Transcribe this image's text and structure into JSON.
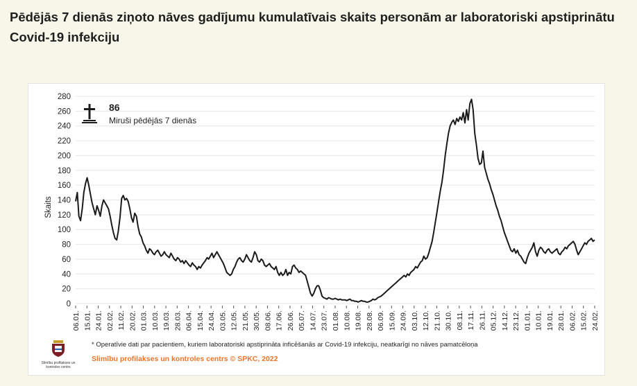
{
  "page": {
    "title": "Pēdējās 7 dienās ziņoto nāves gadījumu kumulatīvais skaits personām ar laboratoriski apstiprinātu Covid-19 infekciju"
  },
  "summary": {
    "value": "86",
    "label": "Miruši pēdējās 7 dienās",
    "icon": "cross-icon"
  },
  "footnote": "* Operatīvie dati par pacientiem, kuriem laboratoriski apstiprināta inficēšanās ar Covid-19 infekciju, neatkarīgi no nāves pamatcēloņa",
  "copyright": "Slimību profilakses un kontroles centrs © SPKC, 2022",
  "logo": {
    "icon": "spkc-logo-icon",
    "text": "Slimību profilakses un kontroles centrs"
  },
  "colors": {
    "background": "#f7f6e8",
    "line": "#1a1a1a",
    "grid": "#e6e6e6",
    "accent": "#e8762d"
  },
  "chart_data": {
    "type": "line",
    "title": "Pēdējās 7 dienās ziņoto nāves gadījumu kumulatīvais skaits personām ar laboratoriski apstiprinātu Covid-19 infekciju",
    "xlabel": "",
    "ylabel": "Skaits",
    "ylim": [
      0,
      280
    ],
    "y_ticks": [
      0,
      20,
      40,
      60,
      80,
      100,
      120,
      140,
      160,
      180,
      200,
      220,
      240,
      260,
      280
    ],
    "grid": true,
    "x_tick_labels": [
      "06.01.",
      "15.01.",
      "24.01.",
      "02.02.",
      "11.02.",
      "20.02.",
      "01.03.",
      "10.03.",
      "19.03.",
      "28.03.",
      "06.04.",
      "15.04.",
      "24.04.",
      "03.05.",
      "12.05.",
      "21.05.",
      "30.05.",
      "08.06.",
      "17.06.",
      "26.06.",
      "05.07.",
      "14.07.",
      "23.07.",
      "01.08.",
      "10.08.",
      "19.08.",
      "28.08.",
      "06.09.",
      "15.09.",
      "24.09.",
      "03.10.",
      "12.10.",
      "21.10.",
      "30.10.",
      "08.11.",
      "17.11.",
      "26.11.",
      "05.12.",
      "14.12.",
      "23.12.",
      "01.01.",
      "10.01.",
      "19.01.",
      "28.01.",
      "06.02.",
      "15.02.",
      "24.02."
    ],
    "series": [
      {
        "values": [
          138,
          150,
          118,
          112,
          128,
          150,
          162,
          170,
          160,
          148,
          136,
          128,
          120,
          132,
          126,
          118,
          132,
          140,
          136,
          132,
          128,
          118,
          106,
          96,
          88,
          86,
          98,
          116,
          142,
          146,
          140,
          142,
          138,
          128,
          116,
          110,
          122,
          118,
          104,
          94,
          90,
          82,
          78,
          72,
          68,
          74,
          72,
          68,
          66,
          70,
          72,
          68,
          64,
          66,
          70,
          66,
          64,
          62,
          68,
          64,
          60,
          58,
          62,
          60,
          56,
          58,
          54,
          58,
          55,
          52,
          50,
          55,
          52,
          50,
          46,
          50,
          48,
          52,
          55,
          58,
          62,
          60,
          64,
          68,
          62,
          66,
          70,
          66,
          62,
          58,
          54,
          48,
          42,
          40,
          38,
          40,
          46,
          50,
          56,
          60,
          62,
          58,
          56,
          60,
          66,
          62,
          58,
          56,
          62,
          70,
          66,
          58,
          56,
          60,
          58,
          52,
          50,
          52,
          54,
          50,
          48,
          46,
          50,
          42,
          38,
          42,
          38,
          40,
          46,
          38,
          42,
          40,
          50,
          52,
          48,
          46,
          42,
          44,
          42,
          40,
          38,
          30,
          22,
          14,
          10,
          14,
          20,
          24,
          24,
          18,
          10,
          8,
          7,
          6,
          8,
          7,
          6,
          6,
          7,
          6,
          5,
          6,
          5,
          5,
          5,
          4,
          5,
          6,
          4,
          4,
          3,
          3,
          2,
          3,
          4,
          3,
          3,
          2,
          2,
          3,
          4,
          6,
          5,
          6,
          8,
          9,
          10,
          12,
          14,
          16,
          18,
          20,
          22,
          24,
          26,
          28,
          30,
          32,
          34,
          36,
          38,
          36,
          40,
          38,
          42,
          44,
          46,
          50,
          48,
          52,
          56,
          58,
          64,
          60,
          62,
          68,
          76,
          84,
          96,
          110,
          124,
          138,
          152,
          164,
          180,
          200,
          216,
          230,
          240,
          245,
          248,
          242,
          250,
          246,
          252,
          248,
          258,
          244,
          262,
          248,
          270,
          276,
          262,
          230,
          214,
          196,
          188,
          190,
          206,
          184,
          176,
          168,
          162,
          154,
          148,
          140,
          132,
          126,
          118,
          112,
          104,
          96,
          90,
          84,
          78,
          72,
          70,
          74,
          68,
          72,
          66,
          64,
          60,
          56,
          54,
          62,
          68,
          72,
          76,
          82,
          70,
          64,
          72,
          76,
          74,
          70,
          68,
          72,
          74,
          70,
          68,
          70,
          72,
          74,
          68,
          66,
          70,
          72,
          76,
          74,
          78,
          80,
          82,
          84,
          80,
          72,
          66,
          70,
          74,
          78,
          82,
          80,
          84,
          86,
          88,
          84,
          86
        ]
      }
    ]
  }
}
